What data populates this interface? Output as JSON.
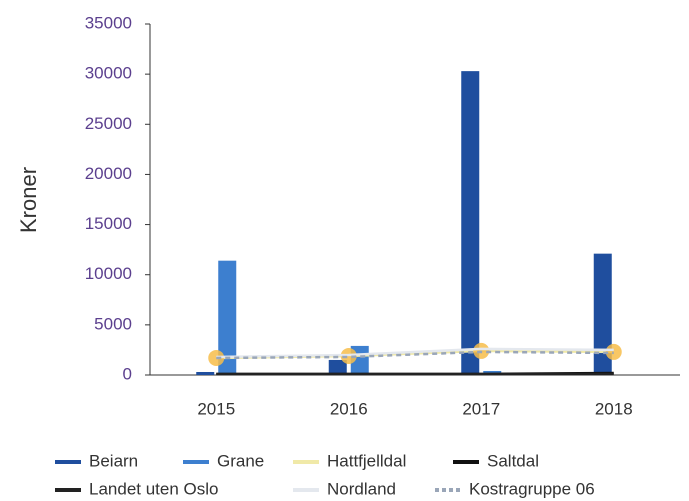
{
  "chart_data": {
    "type": "bar_line",
    "y_label": "Kroner",
    "categories": [
      "2015",
      "2016",
      "2017",
      "2018"
    ],
    "ylim": [
      0,
      35000
    ],
    "yticks": [
      0,
      5000,
      10000,
      15000,
      20000,
      25000,
      30000,
      35000
    ],
    "series": [
      {
        "name": "Beiarn",
        "kind": "bar",
        "color": "#1f4e9e",
        "values": [
          300,
          1500,
          30300,
          12100
        ]
      },
      {
        "name": "Grane",
        "kind": "bar",
        "color": "#3d7fcf",
        "values": [
          11400,
          2900,
          400,
          0
        ]
      },
      {
        "name": "Hattfjelldal",
        "kind": "line",
        "color": "#f0e9a8",
        "marker_color": "#f7bd4a",
        "values": [
          1700,
          1900,
          2400,
          2300
        ]
      },
      {
        "name": "Saltdal",
        "kind": "line",
        "color": "#111111",
        "values": [
          100,
          100,
          100,
          200
        ]
      },
      {
        "name": "Landet uten Oslo",
        "kind": "line",
        "color": "#222222",
        "values": [
          100,
          100,
          100,
          100
        ]
      },
      {
        "name": "Nordland",
        "kind": "line",
        "color": "#e4e8ee",
        "values": [
          1800,
          2000,
          2600,
          2500
        ]
      },
      {
        "name": "Kostragruppe 06",
        "kind": "line",
        "color": "#9aa6b8",
        "dashed": true,
        "values": [
          1700,
          1800,
          2300,
          2200
        ]
      }
    ]
  }
}
